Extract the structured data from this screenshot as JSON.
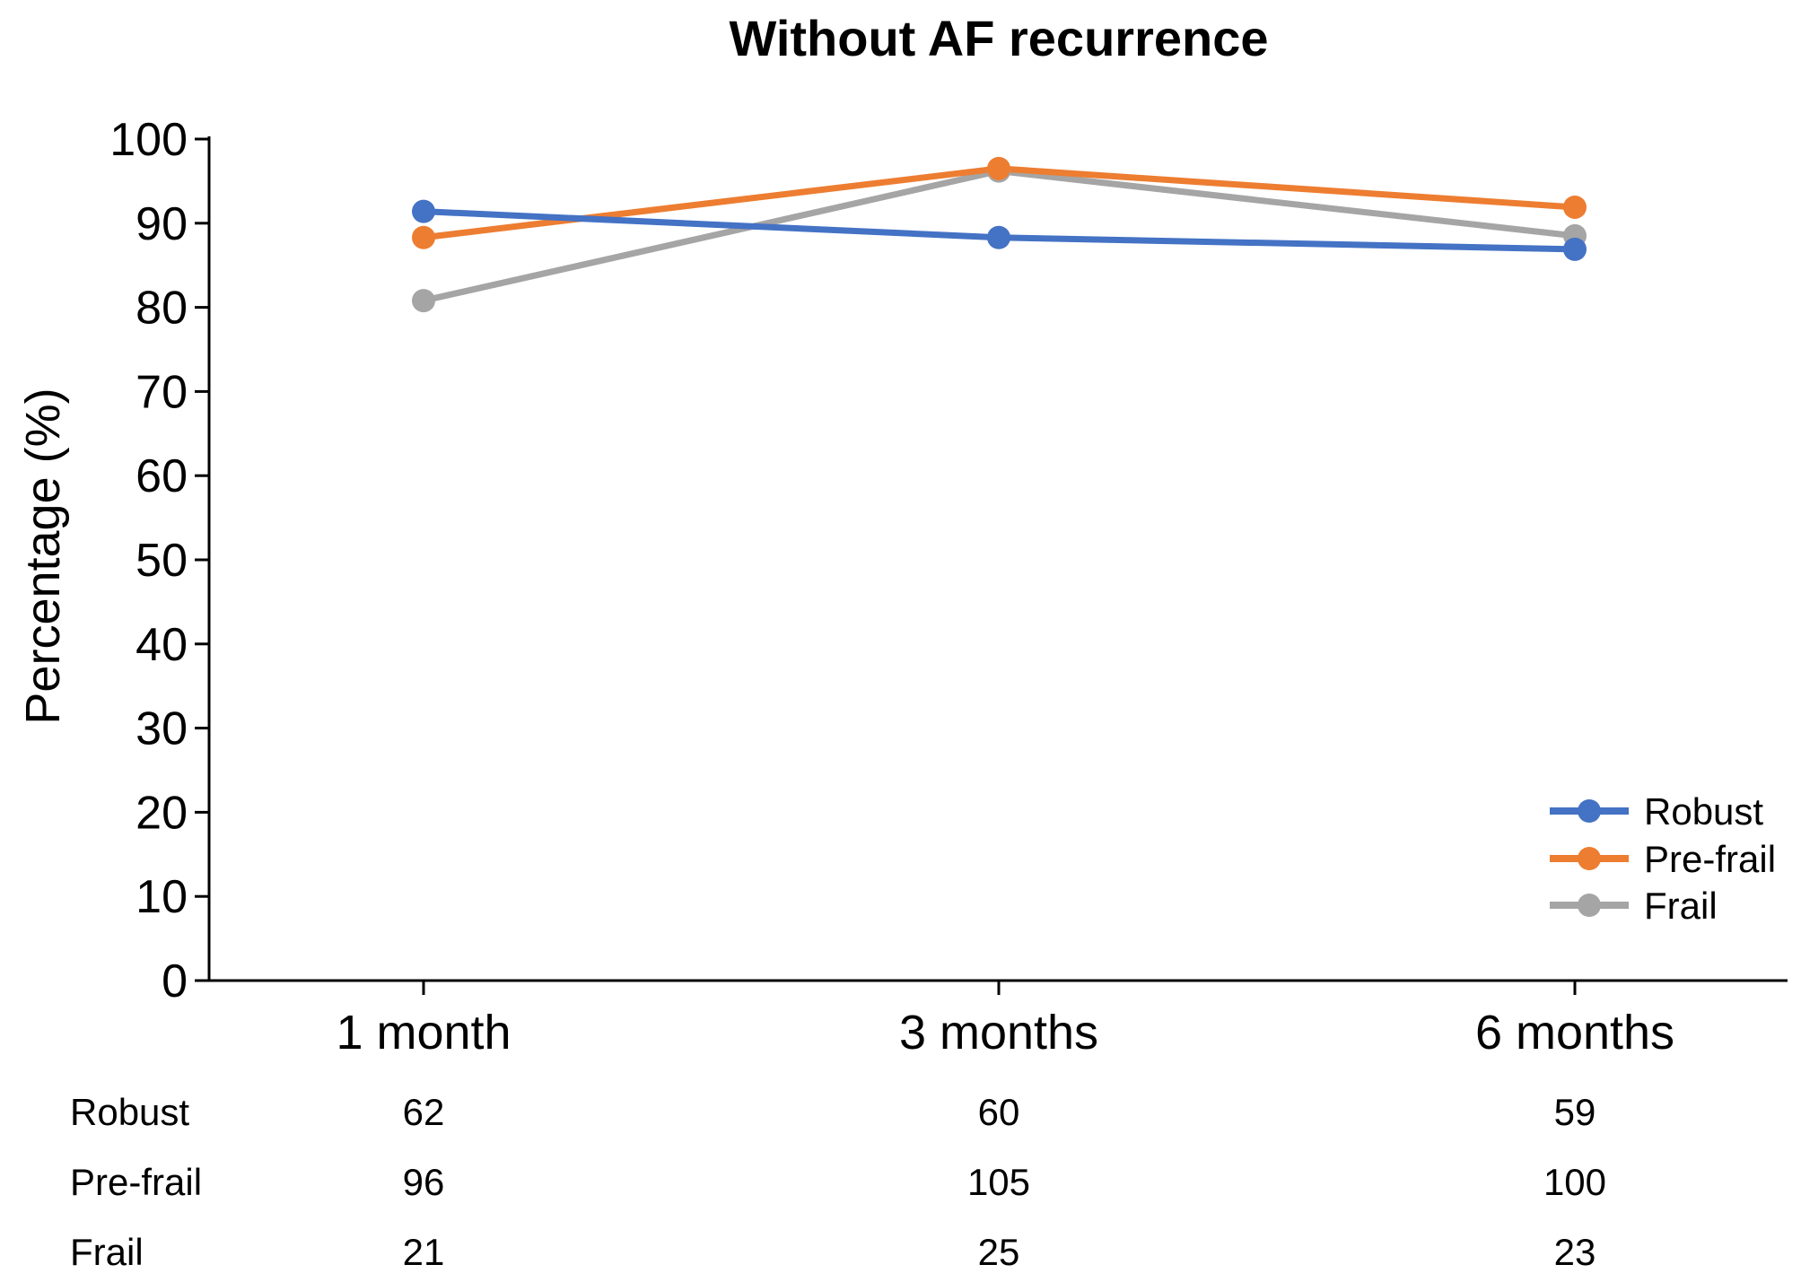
{
  "chart_data": {
    "type": "line",
    "title": "Without AF recurrence",
    "xlabel": "",
    "ylabel": "Percentage (%)",
    "ylim": [
      0,
      100
    ],
    "yticks": [
      "0",
      "10",
      "20",
      "30",
      "40",
      "50",
      "60",
      "70",
      "80",
      "90",
      "100"
    ],
    "categories": [
      "1 month",
      "3 months",
      "6 months"
    ],
    "series": [
      {
        "name": "Robust",
        "color": "#4472C4",
        "values": [
          91.4,
          88.3,
          86.9
        ]
      },
      {
        "name": "Pre-frail",
        "color": "#ED7D31",
        "values": [
          88.3,
          96.5,
          91.9
        ]
      },
      {
        "name": "Frail",
        "color": "#A5A5A5",
        "values": [
          80.8,
          96.2,
          88.5
        ]
      }
    ],
    "legend_position": "bottom-right",
    "grid": false,
    "n_table": {
      "rows": [
        {
          "label": "Robust",
          "values": [
            "62",
            "60",
            "59"
          ]
        },
        {
          "label": "Pre-frail",
          "values": [
            "96",
            "105",
            "100"
          ]
        },
        {
          "label": "Frail",
          "values": [
            "21",
            "25",
            "23"
          ]
        }
      ]
    }
  }
}
